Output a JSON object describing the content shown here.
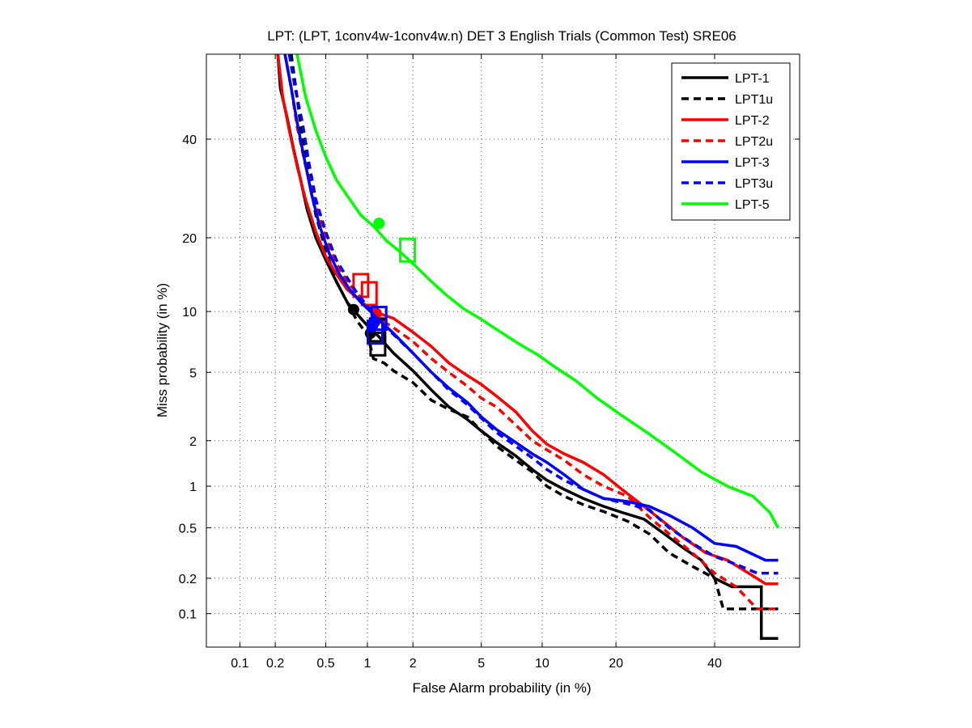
{
  "chart_data": {
    "type": "line",
    "title": "LPT: (LPT, 1conv4w-1conv4w.n) DET 3 English Trials (Common Test) SRE06",
    "xlabel": "False Alarm probability (in %)",
    "ylabel": "Miss probability (in %)",
    "xscale": "normal-deviate",
    "yscale": "normal-deviate",
    "xlim": [
      0.05,
      60
    ],
    "ylim": [
      0.05,
      60
    ],
    "x_ticks": [
      {
        "value": 0.1,
        "label": "0.1"
      },
      {
        "value": 0.2,
        "label": "0.2"
      },
      {
        "value": 0.5,
        "label": "0.5"
      },
      {
        "value": 1,
        "label": "1"
      },
      {
        "value": 2,
        "label": "2"
      },
      {
        "value": 5,
        "label": "5"
      },
      {
        "value": 10,
        "label": "10"
      },
      {
        "value": 20,
        "label": "20"
      },
      {
        "value": 40,
        "label": "40"
      }
    ],
    "y_ticks": [
      {
        "value": 0.1,
        "label": "0.1"
      },
      {
        "value": 0.2,
        "label": "0.2"
      },
      {
        "value": 0.5,
        "label": "0.5"
      },
      {
        "value": 1,
        "label": "1"
      },
      {
        "value": 2,
        "label": "2"
      },
      {
        "value": 5,
        "label": "5"
      },
      {
        "value": 10,
        "label": "10"
      },
      {
        "value": 20,
        "label": "20"
      },
      {
        "value": 40,
        "label": "40"
      }
    ],
    "grid": true,
    "legend_position": "top-right",
    "series": [
      {
        "name": "LPT-1",
        "color": "#000000",
        "style": "solid",
        "x": [
          0.21,
          0.22,
          0.25,
          0.28,
          0.32,
          0.36,
          0.42,
          0.5,
          0.6,
          0.72,
          0.85,
          1.0,
          1.2,
          1.5,
          2.0,
          2.6,
          3.3,
          4.2,
          5.0,
          6.0,
          7.5,
          9.0,
          10.5,
          12.5,
          15.0,
          18.0,
          21.0,
          25.0,
          29.0,
          33.0,
          37.0,
          40.0,
          44.0,
          48.0,
          51.0,
          51.0,
          55.0
        ],
        "y": [
          60,
          52,
          45,
          38,
          31,
          25,
          20,
          16.5,
          13.5,
          11.0,
          9.7,
          8.6,
          7.6,
          6.3,
          5.1,
          4.0,
          3.2,
          2.7,
          2.3,
          1.95,
          1.6,
          1.3,
          1.1,
          0.95,
          0.82,
          0.72,
          0.65,
          0.58,
          0.45,
          0.35,
          0.28,
          0.2,
          0.17,
          0.17,
          0.17,
          0.06,
          0.06
        ],
        "markers": [
          {
            "type": "circle",
            "x": 0.8,
            "y": 10.2
          },
          {
            "type": "square",
            "x": 1.17,
            "y": 8.2
          }
        ]
      },
      {
        "name": "LPT1u",
        "color": "#000000",
        "style": "dashed",
        "x": [
          0.27,
          0.3,
          0.33,
          0.37,
          0.42,
          0.5,
          0.6,
          0.72,
          0.85,
          1.0,
          1.05,
          1.1,
          1.3,
          1.5,
          2.0,
          2.6,
          3.3,
          4.2,
          5.0,
          6.0,
          7.5,
          9.0,
          10.5,
          12.5,
          15.0,
          18.0,
          22.0,
          26.0,
          30.0,
          35.0,
          40.0,
          42.0,
          50.0,
          55.0
        ],
        "y": [
          60,
          50,
          40,
          32,
          24,
          18,
          13.5,
          11.0,
          9.0,
          7.8,
          6.8,
          5.9,
          5.6,
          5.1,
          4.4,
          3.5,
          3.1,
          2.8,
          2.3,
          1.85,
          1.5,
          1.25,
          1.0,
          0.85,
          0.74,
          0.66,
          0.56,
          0.45,
          0.32,
          0.25,
          0.2,
          0.11,
          0.11,
          0.11
        ],
        "markers": [
          {
            "type": "circle",
            "x": 1.05,
            "y": 7.9
          },
          {
            "type": "square",
            "x": 1.18,
            "y": 7.0
          }
        ]
      },
      {
        "name": "LPT-2",
        "color": "#ff0000",
        "style": "solid",
        "x": [
          0.21,
          0.23,
          0.26,
          0.3,
          0.35,
          0.42,
          0.5,
          0.6,
          0.72,
          0.85,
          1.0,
          1.2,
          1.5,
          2.0,
          2.6,
          3.3,
          4.2,
          5.0,
          6.0,
          7.5,
          9.0,
          10.5,
          12.5,
          15.0,
          18.0,
          21.0,
          25.0,
          29.0,
          33.0,
          38.0,
          43.0,
          48.0,
          52.0,
          55.0
        ],
        "y": [
          60,
          50,
          42,
          34,
          27,
          21,
          17,
          14.5,
          12.5,
          11.5,
          10.5,
          9.8,
          9.3,
          8.0,
          6.8,
          5.6,
          4.8,
          4.3,
          3.7,
          3.0,
          2.3,
          1.9,
          1.65,
          1.45,
          1.2,
          0.95,
          0.72,
          0.55,
          0.42,
          0.32,
          0.28,
          0.22,
          0.18,
          0.18
        ],
        "markers": [
          {
            "type": "circle",
            "x": 1.15,
            "y": 9.8
          },
          {
            "type": "square",
            "x": 0.9,
            "y": 13.0
          }
        ]
      },
      {
        "name": "LPT2u",
        "color": "#ff0000",
        "style": "dashed",
        "x": [
          0.24,
          0.27,
          0.3,
          0.35,
          0.42,
          0.5,
          0.6,
          0.72,
          0.85,
          1.0,
          1.2,
          1.5,
          2.0,
          2.6,
          3.3,
          4.2,
          5.0,
          6.0,
          7.5,
          9.0,
          10.5,
          12.5,
          15.0,
          18.0,
          22.0,
          26.0,
          30.0,
          35.0,
          40.0,
          45.0,
          50.0,
          55.0
        ],
        "y": [
          60,
          52,
          43,
          34,
          26,
          20,
          16,
          13.5,
          12.0,
          10.5,
          9.3,
          8.4,
          7.2,
          5.9,
          5.0,
          4.2,
          3.6,
          3.2,
          2.5,
          2.0,
          1.75,
          1.5,
          1.2,
          1.0,
          0.85,
          0.6,
          0.45,
          0.32,
          0.22,
          0.17,
          0.11,
          0.11
        ],
        "markers": [
          {
            "type": "circle",
            "x": 1.12,
            "y": 8.9
          },
          {
            "type": "square",
            "x": 1.03,
            "y": 12.0
          }
        ]
      },
      {
        "name": "LPT-3",
        "color": "#0000ff",
        "style": "solid",
        "x": [
          0.24,
          0.27,
          0.3,
          0.34,
          0.39,
          0.45,
          0.53,
          0.63,
          0.75,
          0.9,
          1.05,
          1.25,
          1.5,
          2.0,
          2.6,
          3.3,
          4.2,
          5.0,
          6.0,
          7.5,
          9.0,
          10.5,
          12.5,
          15.0,
          18.0,
          22.0,
          26.0,
          30.0,
          35.0,
          40.0,
          45.0,
          52.0,
          55.0
        ],
        "y": [
          60,
          52,
          44,
          36,
          28,
          22,
          17.5,
          14.5,
          12.5,
          11.0,
          10.0,
          8.9,
          7.9,
          6.3,
          5.0,
          4.1,
          3.4,
          2.8,
          2.35,
          1.95,
          1.65,
          1.45,
          1.2,
          0.95,
          0.82,
          0.78,
          0.72,
          0.62,
          0.5,
          0.38,
          0.36,
          0.28,
          0.28
        ],
        "markers": [
          {
            "type": "circle",
            "x": 1.12,
            "y": 9.0
          },
          {
            "type": "square",
            "x": 1.2,
            "y": 9.3
          }
        ]
      },
      {
        "name": "LPT3u",
        "color": "#0000ff",
        "style": "dashed",
        "x": [
          0.26,
          0.29,
          0.33,
          0.37,
          0.42,
          0.5,
          0.6,
          0.72,
          0.85,
          1.0,
          1.2,
          1.5,
          2.0,
          2.6,
          3.3,
          4.2,
          5.0,
          6.0,
          7.5,
          9.0,
          10.5,
          12.5,
          15.0,
          18.0,
          22.0,
          26.0,
          30.0,
          35.0,
          40.0,
          45.0,
          50.0,
          55.0
        ],
        "y": [
          60,
          52,
          44,
          35,
          27,
          21,
          16.5,
          14.0,
          12.0,
          10.6,
          9.0,
          7.8,
          6.3,
          5.0,
          4.0,
          3.3,
          2.75,
          2.25,
          1.85,
          1.55,
          1.3,
          1.1,
          0.95,
          0.82,
          0.75,
          0.68,
          0.5,
          0.38,
          0.3,
          0.26,
          0.22,
          0.22
        ],
        "markers": [
          {
            "type": "circle",
            "x": 1.08,
            "y": 8.5
          },
          {
            "type": "square",
            "x": 1.13,
            "y": 8.0
          }
        ]
      },
      {
        "name": "LPT-5",
        "color": "#00ff00",
        "style": "solid",
        "x": [
          0.3,
          0.35,
          0.42,
          0.5,
          0.6,
          0.75,
          0.9,
          1.1,
          1.35,
          1.7,
          2.1,
          2.6,
          3.2,
          4.0,
          5.0,
          6.2,
          7.8,
          9.5,
          11.5,
          14.0,
          17.0,
          21.0,
          26.0,
          31.0,
          37.0,
          43.0,
          49.0,
          53.0,
          55.0
        ],
        "y": [
          60,
          50,
          42,
          36,
          31,
          27,
          24,
          22,
          19.5,
          17.5,
          15.5,
          13.5,
          11.8,
          10.3,
          9.2,
          8.1,
          7.0,
          6.2,
          5.3,
          4.5,
          3.6,
          2.85,
          2.2,
          1.7,
          1.25,
          1.0,
          0.85,
          0.65,
          0.5
        ],
        "markers": [
          {
            "type": "circle",
            "x": 1.2,
            "y": 22.5
          },
          {
            "type": "square",
            "x": 1.85,
            "y": 18.0
          }
        ]
      }
    ]
  }
}
